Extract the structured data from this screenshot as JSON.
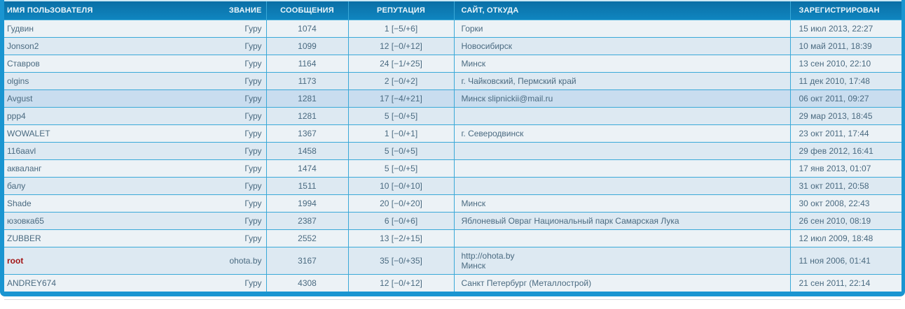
{
  "colors": {
    "header_gradient_top": "#0a6fa5",
    "header_gradient_bottom": "#0f85bf",
    "outer_border": "#1a95d1",
    "cell_border": "#3aa9d8",
    "row_odd": "#ecf2f6",
    "row_even": "#dde9f2",
    "row_highlight": "#c9ddef",
    "body_text": "#4a6a80",
    "header_text": "#ecf6fb",
    "root_username_red": "#a31515"
  },
  "table": {
    "columns": [
      {
        "key": "username",
        "label": "ИМЯ ПОЛЬЗОВАТЕЛЯ",
        "align": "left"
      },
      {
        "key": "rank",
        "label": "ЗВАНИЕ",
        "align": "right"
      },
      {
        "key": "messages",
        "label": "СООБЩЕНИЯ",
        "align": "center"
      },
      {
        "key": "reputation",
        "label": "РЕПУТАЦИЯ",
        "align": "center"
      },
      {
        "key": "site",
        "label": "САЙТ, ОТКУДА",
        "align": "left"
      },
      {
        "key": "registered",
        "label": "ЗАРЕГИСТРИРОВАН",
        "align": "left"
      }
    ],
    "rows": [
      {
        "username": "Гудвин",
        "rank": "Гуру",
        "messages": "1074",
        "reputation": "1 [−5/+6]",
        "site": [
          "Горки"
        ],
        "registered": "15 июл 2013, 22:27",
        "highlight": false,
        "user_style": "normal"
      },
      {
        "username": "Jonson2",
        "rank": "Гуру",
        "messages": "1099",
        "reputation": "12 [−0/+12]",
        "site": [
          "Новосибирск"
        ],
        "registered": "10 май 2011, 18:39",
        "highlight": false,
        "user_style": "normal"
      },
      {
        "username": "Ставров",
        "rank": "Гуру",
        "messages": "1164",
        "reputation": "24 [−1/+25]",
        "site": [
          "Минск"
        ],
        "registered": "13 сен 2010, 22:10",
        "highlight": false,
        "user_style": "normal"
      },
      {
        "username": "olgins",
        "rank": "Гуру",
        "messages": "1173",
        "reputation": "2 [−0/+2]",
        "site": [
          "г. Чайковский, Пермский край"
        ],
        "registered": "11 дек 2010, 17:48",
        "highlight": false,
        "user_style": "normal"
      },
      {
        "username": "Avgust",
        "rank": "Гуру",
        "messages": "1281",
        "reputation": "17 [−4/+21]",
        "site": [
          "Минск slipnickii@mail.ru"
        ],
        "registered": "06 окт 2011, 09:27",
        "highlight": true,
        "user_style": "normal"
      },
      {
        "username": "ppp4",
        "rank": "Гуру",
        "messages": "1281",
        "reputation": "5 [−0/+5]",
        "site": [],
        "registered": "29 мар 2013, 18:45",
        "highlight": false,
        "user_style": "normal"
      },
      {
        "username": "WOWALET",
        "rank": "Гуру",
        "messages": "1367",
        "reputation": "1 [−0/+1]",
        "site": [
          "г. Северодвинск"
        ],
        "registered": "23 окт 2011, 17:44",
        "highlight": false,
        "user_style": "normal"
      },
      {
        "username": "116aavl",
        "rank": "Гуру",
        "messages": "1458",
        "reputation": "5 [−0/+5]",
        "site": [],
        "registered": "29 фев 2012, 16:41",
        "highlight": false,
        "user_style": "normal"
      },
      {
        "username": "акваланг",
        "rank": "Гуру",
        "messages": "1474",
        "reputation": "5 [−0/+5]",
        "site": [],
        "registered": "17 янв 2013, 01:07",
        "highlight": false,
        "user_style": "normal"
      },
      {
        "username": "балу",
        "rank": "Гуру",
        "messages": "1511",
        "reputation": "10 [−0/+10]",
        "site": [],
        "registered": "31 окт 2011, 20:58",
        "highlight": false,
        "user_style": "normal"
      },
      {
        "username": "Shade",
        "rank": "Гуру",
        "messages": "1994",
        "reputation": "20 [−0/+20]",
        "site": [
          "Минск"
        ],
        "registered": "30 окт 2008, 22:43",
        "highlight": false,
        "user_style": "normal"
      },
      {
        "username": "юзовка65",
        "rank": "Гуру",
        "messages": "2387",
        "reputation": "6 [−0/+6]",
        "site": [
          "Яблоневый Овраг Национальный парк Самарская Лука"
        ],
        "registered": "26 сен 2010, 08:19",
        "highlight": false,
        "user_style": "normal"
      },
      {
        "username": "ZUBBER",
        "rank": "Гуру",
        "messages": "2552",
        "reputation": "13 [−2/+15]",
        "site": [],
        "registered": "12 июл 2009, 18:48",
        "highlight": false,
        "user_style": "normal"
      },
      {
        "username": "root",
        "rank": "ohota.by",
        "messages": "3167",
        "reputation": "35 [−0/+35]",
        "site": [
          "http://ohota.by",
          "Минск"
        ],
        "registered": "11 ноя 2006, 01:41",
        "highlight": false,
        "user_style": "root"
      },
      {
        "username": "ANDREY674",
        "rank": "Гуру",
        "messages": "4308",
        "reputation": "12 [−0/+12]",
        "site": [
          "Санкт Петербург (Металлострой)"
        ],
        "registered": "21 сен 2011, 22:14",
        "highlight": false,
        "user_style": "normal"
      }
    ]
  }
}
